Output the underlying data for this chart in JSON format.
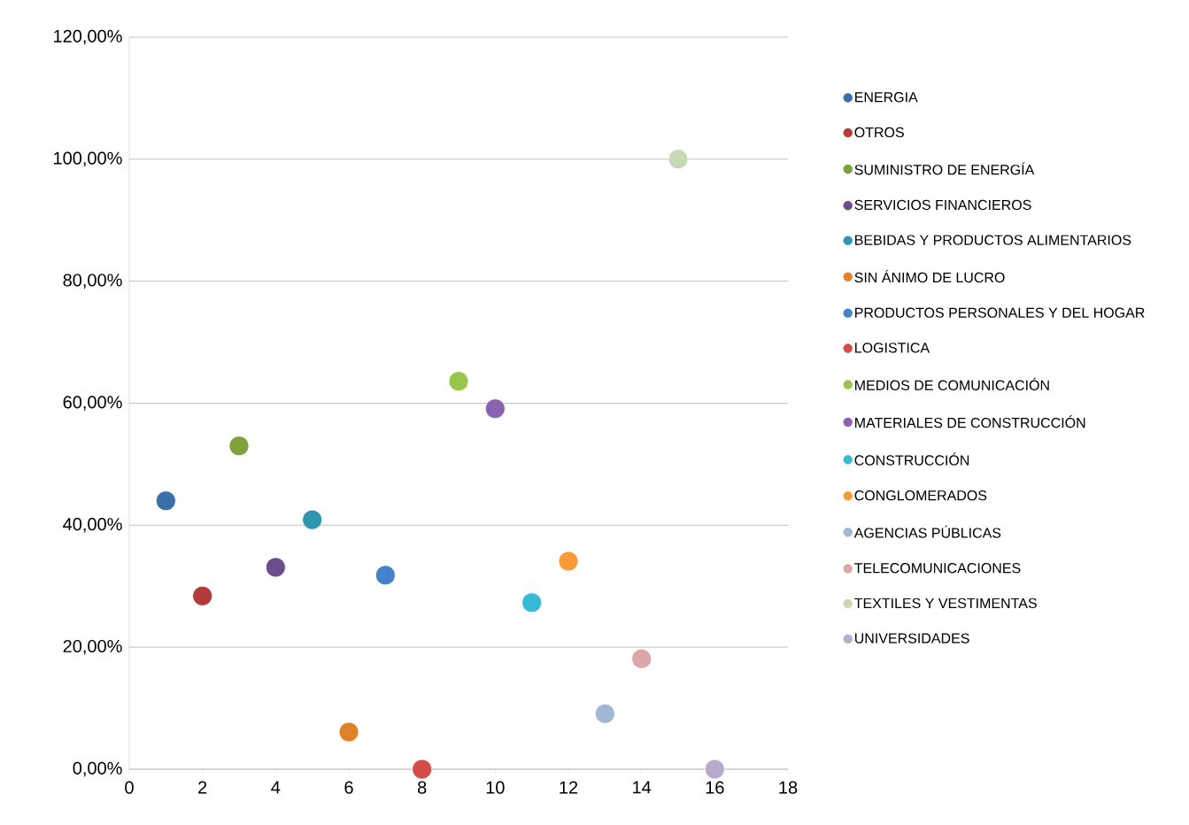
{
  "chart_data": {
    "type": "scatter",
    "xlim": [
      0,
      18
    ],
    "ylim": [
      0,
      120
    ],
    "xticks": [
      0,
      2,
      4,
      6,
      8,
      10,
      12,
      14,
      16,
      18
    ],
    "yticks": [
      {
        "value": 0,
        "label": "0,00%"
      },
      {
        "value": 20,
        "label": "20,00%"
      },
      {
        "value": 40,
        "label": "40,00%"
      },
      {
        "value": 60,
        "label": "60,00%"
      },
      {
        "value": 80,
        "label": "80,00%"
      },
      {
        "value": 100,
        "label": "100,00%"
      },
      {
        "value": 120,
        "label": "120,00%"
      }
    ],
    "grid": "y",
    "legend": "right",
    "series": [
      {
        "name": "ENERGIA",
        "color": "#3a6fa9",
        "x": [
          1
        ],
        "values": [
          44
        ]
      },
      {
        "name": "OTROS",
        "color": "#b33c3a",
        "x": [
          2
        ],
        "values": [
          28.4
        ]
      },
      {
        "name": "SUMINISTRO DE ENERGÍA",
        "color": "#7fa13b",
        "x": [
          3
        ],
        "values": [
          53
        ]
      },
      {
        "name": "SERVICIOS FINANCIEROS",
        "color": "#6b4d8c",
        "x": [
          4
        ],
        "values": [
          33.1
        ]
      },
      {
        "name": "BEBIDAS Y PRODUCTOS ALIMENTARIOS",
        "color": "#2f97ad",
        "x": [
          5
        ],
        "values": [
          40.9
        ]
      },
      {
        "name": "SIN ÁNIMO DE LUCRO",
        "color": "#e0812a",
        "x": [
          6
        ],
        "values": [
          6.1
        ]
      },
      {
        "name": "PRODUCTOS PERSONALES Y DEL HOGAR",
        "color": "#4483cc",
        "x": [
          7
        ],
        "values": [
          31.8
        ]
      },
      {
        "name": "LOGISTICA",
        "color": "#d44c48",
        "x": [
          8
        ],
        "values": [
          0
        ]
      },
      {
        "name": "MEDIOS DE COMUNICACIÓN",
        "color": "#98c64d",
        "x": [
          9
        ],
        "values": [
          63.6
        ]
      },
      {
        "name": "MATERIALES DE CONSTRUCCIÓN",
        "color": "#8a63b0",
        "x": [
          10
        ],
        "values": [
          59.1
        ]
      },
      {
        "name": "CONSTRUCCIÓN",
        "color": "#3ab9d6",
        "x": [
          11
        ],
        "values": [
          27.3
        ]
      },
      {
        "name": "CONGLOMERADOS",
        "color": "#fa9a37",
        "x": [
          12
        ],
        "values": [
          34.1
        ]
      },
      {
        "name": "AGENCIAS PÚBLICAS",
        "color": "#a2b6d6",
        "x": [
          13
        ],
        "values": [
          9.1
        ]
      },
      {
        "name": "TELECOMUNICACIONES",
        "color": "#dca7a6",
        "x": [
          14
        ],
        "values": [
          18.1
        ]
      },
      {
        "name": "TEXTILES Y VESTIMENTAS",
        "color": "#c7d9b2",
        "x": [
          15
        ],
        "values": [
          100
        ]
      },
      {
        "name": "UNIVERSIDADES",
        "color": "#b9aacb",
        "x": [
          16
        ],
        "values": [
          0
        ]
      }
    ]
  }
}
